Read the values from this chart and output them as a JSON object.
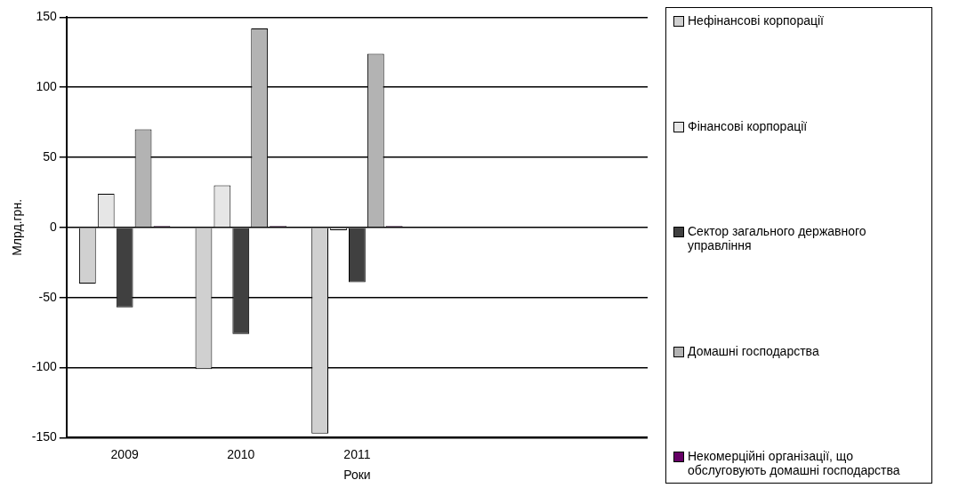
{
  "chart_data": {
    "type": "bar",
    "categories": [
      "2009",
      "2010",
      "2011",
      null,
      null
    ],
    "series": [
      {
        "name": "Нефінансові корпорації",
        "color": "#d0d0d0",
        "values": [
          -40,
          -101,
          -147,
          null,
          null
        ]
      },
      {
        "name": "Фінансові корпорації",
        "color": "#e6e6e6",
        "values": [
          24,
          30,
          -2,
          null,
          null
        ]
      },
      {
        "name": "Сектор загального державного управління",
        "color": "#404040",
        "values": [
          -57,
          -76,
          -39,
          null,
          null
        ]
      },
      {
        "name": "Домашні господарства",
        "color": "#b3b3b3",
        "values": [
          70,
          142,
          124,
          null,
          null
        ]
      },
      {
        "name": "Некомерційні організації, що обслуговують домашні господарства",
        "color": "#660066",
        "values": [
          1,
          1,
          1,
          null,
          null
        ]
      }
    ],
    "xlabel": "Роки",
    "ylabel": "Млрд.грн.",
    "ylim": [
      -150,
      150
    ],
    "yticks": [
      -150,
      -100,
      -50,
      0,
      50,
      100,
      150
    ],
    "grid": "y",
    "legend": "right"
  }
}
